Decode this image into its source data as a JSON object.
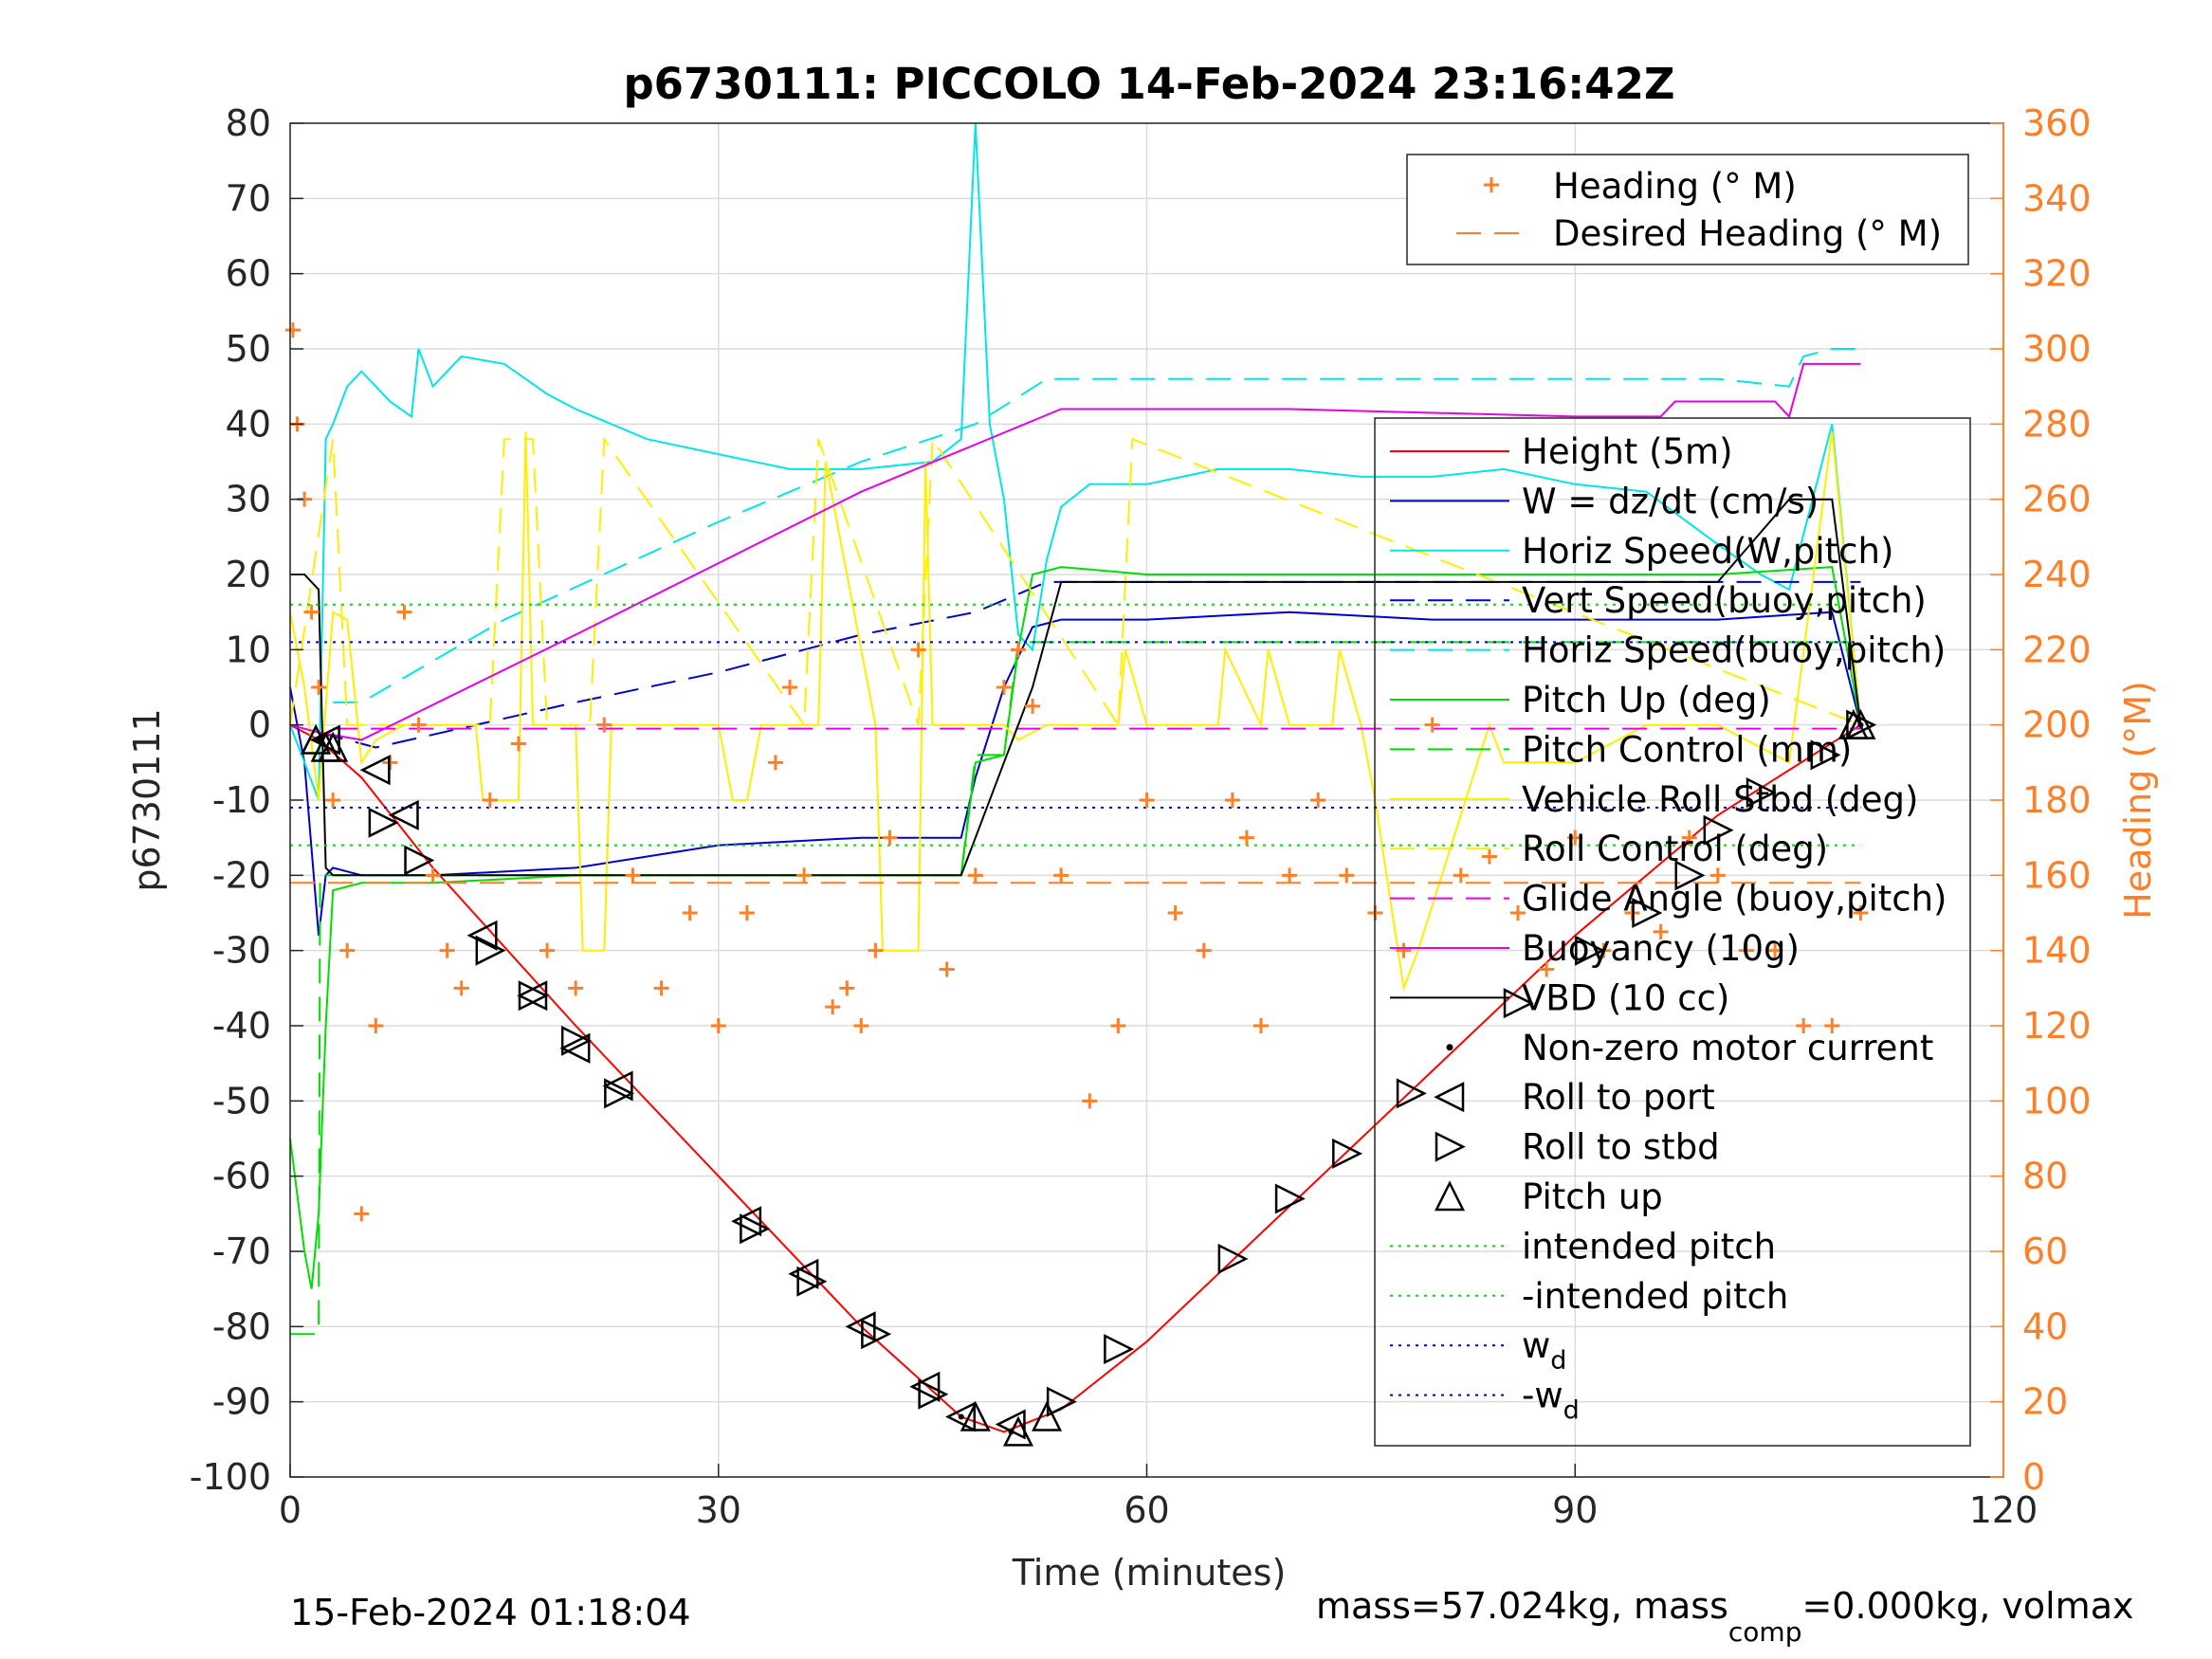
{
  "chart_data": {
    "type": "line",
    "title": "p6730111: PICCOLO 14-Feb-2024 23:16:42Z",
    "xlabel": "Time (minutes)",
    "ylabel": "p6730111",
    "y2label": "Heading (°M)",
    "xlim": [
      0,
      120
    ],
    "ylim": [
      -100,
      80
    ],
    "y2lim": [
      0,
      360
    ],
    "xticks": [
      "0",
      "30",
      "60",
      "90",
      "120"
    ],
    "yticks": [
      "80",
      "70",
      "60",
      "50",
      "40",
      "30",
      "20",
      "10",
      "0",
      "-10",
      "-20",
      "-30",
      "-40",
      "-50",
      "-60",
      "-70",
      "-80",
      "-90",
      "-100"
    ],
    "y2ticks": [
      "360",
      "340",
      "320",
      "300",
      "280",
      "260",
      "240",
      "220",
      "200",
      "180",
      "160",
      "140",
      "120",
      "100",
      "80",
      "60",
      "40",
      "20",
      "0"
    ],
    "grid": true,
    "footer_left": "15-Feb-2024 01:18:04",
    "footer_right": {
      "a": "mass=57.024kg, mass",
      "sub": "comp",
      "b": "=0.000kg, volmax"
    },
    "legend_top": {
      "placement": "top-right",
      "entries": [
        "Heading (° M)",
        "Desired Heading (° M)"
      ]
    },
    "legend_main": {
      "placement": "right",
      "entries": [
        {
          "label": "Height (5m)",
          "color": "#ff0000",
          "style": "solid"
        },
        {
          "label": "W = dz/dt (cm/s)",
          "color": "#0000cc",
          "style": "solid"
        },
        {
          "label": "Horiz Speed(W,pitch)",
          "color": "#00e5e5",
          "style": "solid"
        },
        {
          "label": "Vert Speed(buoy,pitch)",
          "color": "#0000cc",
          "style": "dashed"
        },
        {
          "label": "Horiz Speed(buoy,pitch)",
          "color": "#00e5e5",
          "style": "dashed"
        },
        {
          "label": "Pitch Up (deg)",
          "color": "#00dd00",
          "style": "solid"
        },
        {
          "label": "Pitch Control (mm)",
          "color": "#00dd00",
          "style": "dashed"
        },
        {
          "label": "Vehicle Roll Stbd (deg)",
          "color": "#ffee00",
          "style": "solid"
        },
        {
          "label": "Roll Control (deg)",
          "color": "#ffee00",
          "style": "dashed"
        },
        {
          "label": "Glide Angle (buoy,pitch)",
          "color": "#e600e6",
          "style": "dashed"
        },
        {
          "label": "Buoyancy (10g)",
          "color": "#e600e6",
          "style": "solid"
        },
        {
          "label": "VBD (10 cc)",
          "color": "#000000",
          "style": "solid"
        },
        {
          "label": "Non-zero motor current",
          "color": "#000000",
          "style": "dot"
        },
        {
          "label": "Roll to port",
          "color": "#000000",
          "style": "tri-left"
        },
        {
          "label": "Roll to stbd",
          "color": "#000000",
          "style": "tri-right"
        },
        {
          "label": "Pitch up",
          "color": "#000000",
          "style": "tri-up"
        },
        {
          "label": "intended pitch",
          "color": "#00dd00",
          "style": "dotted"
        },
        {
          "label": "-intended pitch",
          "color": "#00dd00",
          "style": "dotted"
        },
        {
          "label": "w",
          "sub": "d",
          "color": "#0000cc",
          "style": "dotted"
        },
        {
          "label": "-w",
          "sub": "d",
          "color": "#0000cc",
          "style": "dotted"
        }
      ]
    },
    "colors": {
      "heading": "#ff7f27",
      "axis_right": "#ff7f27"
    },
    "series": [
      {
        "name": "Height (5m)",
        "color": "#ff0000",
        "x": [
          0,
          2,
          5,
          10,
          20,
          30,
          40,
          47,
          50,
          54,
          60,
          70,
          80,
          90,
          100,
          110
        ],
        "y": [
          0,
          -2,
          -7,
          -19,
          -40,
          -60,
          -80,
          -92,
          -94,
          -91,
          -82,
          -64,
          -46,
          -28,
          -12,
          0
        ]
      },
      {
        "name": "W = dz/dt (cm/s)",
        "color": "#0000cc",
        "x": [
          0,
          1,
          2,
          2.5,
          3,
          5,
          10,
          20,
          30,
          40,
          47,
          48,
          50,
          52,
          54,
          60,
          70,
          80,
          90,
          100,
          108,
          110
        ],
        "y": [
          5,
          -5,
          -28,
          -20,
          -19,
          -20,
          -20,
          -19,
          -16,
          -15,
          -15,
          -7,
          5,
          13,
          14,
          14,
          15,
          14,
          14,
          14,
          15,
          0
        ]
      },
      {
        "name": "Horiz Speed(W,pitch)",
        "color": "#00e5e5",
        "x": [
          0,
          1,
          2,
          2.5,
          3,
          4,
          5,
          7,
          8.5,
          9,
          10,
          12,
          15,
          18,
          20,
          25,
          30,
          35,
          40,
          45,
          47,
          48,
          49,
          50,
          51,
          52,
          53,
          54,
          56,
          60,
          65,
          70,
          75,
          80,
          85,
          90,
          95,
          100,
          103,
          105,
          108,
          110
        ],
        "y": [
          0,
          -5,
          -10,
          38,
          40,
          45,
          47,
          43,
          41,
          50,
          45,
          49,
          48,
          44,
          42,
          38,
          36,
          34,
          34,
          35,
          38,
          80,
          40,
          30,
          12,
          10,
          22,
          29,
          32,
          32,
          34,
          34,
          33,
          33,
          34,
          32,
          31,
          24,
          20,
          18,
          40,
          0
        ]
      },
      {
        "name": "Vert Speed(buoy,pitch)",
        "color": "#0000cc",
        "dash": true,
        "x": [
          2,
          6,
          20,
          30,
          40,
          48,
          53,
          60,
          90,
          100,
          108,
          110
        ],
        "y": [
          -1,
          -3,
          3,
          7,
          12,
          15,
          19,
          19,
          19,
          19,
          19,
          19
        ]
      },
      {
        "name": "Horiz Speed(buoy,pitch)",
        "color": "#00e5e5",
        "dash": true,
        "x": [
          3,
          5,
          15,
          30,
          40,
          48,
          53,
          60,
          90,
          100,
          105,
          106,
          108,
          110
        ],
        "y": [
          3,
          3,
          14,
          27,
          35,
          40,
          46,
          46,
          46,
          46,
          45,
          49,
          50,
          50
        ]
      },
      {
        "name": "Pitch Up (deg)",
        "color": "#00dd00",
        "x": [
          0,
          1,
          1.5,
          2,
          2.5,
          3,
          5,
          10,
          20,
          30,
          40,
          47,
          48,
          50,
          51,
          52,
          54,
          60,
          70,
          80,
          90,
          100,
          108,
          110
        ],
        "y": [
          -55,
          -70,
          -75,
          -65,
          -40,
          -22,
          -21,
          -21,
          -20,
          -20,
          -20,
          -20,
          -5,
          -4,
          10,
          20,
          21,
          20,
          20,
          20,
          20,
          20,
          21,
          0
        ]
      },
      {
        "name": "Pitch Control (mm)",
        "color": "#00dd00",
        "dash": true,
        "x": [
          0,
          2,
          2.1,
          47,
          48,
          50,
          51,
          110
        ],
        "y": [
          -81,
          -81,
          -20,
          -20,
          -4,
          -4,
          11,
          11
        ]
      },
      {
        "name": "Vehicle Roll Stbd (deg)",
        "color": "#ffee00",
        "x": [
          0,
          1,
          2,
          3,
          4,
          5,
          6,
          8,
          10,
          13,
          13.5,
          16,
          16.5,
          17,
          20,
          20.5,
          22,
          22.5,
          30,
          31,
          32,
          33,
          37,
          37.5,
          41,
          41.5,
          44,
          44.5,
          45,
          50,
          51,
          53,
          58,
          58.5,
          60,
          65,
          65.5,
          68,
          68.5,
          70,
          73,
          73.5,
          75,
          76,
          78,
          79,
          84,
          85,
          90,
          95,
          100,
          105,
          108,
          110
        ],
        "y": [
          15,
          5,
          -10,
          15,
          14,
          -5,
          -2,
          0,
          0,
          0,
          -10,
          -10,
          39,
          0,
          0,
          -30,
          -30,
          0,
          0,
          -10,
          -10,
          0,
          0,
          35,
          0,
          -30,
          -30,
          35,
          0,
          0,
          -2,
          0,
          0,
          10,
          0,
          0,
          10,
          0,
          10,
          0,
          0,
          10,
          0,
          -10,
          -35,
          -30,
          0,
          -5,
          -5,
          0,
          0,
          -5,
          39,
          0
        ]
      },
      {
        "name": "Roll Control (deg)",
        "color": "#ffee00",
        "dash": true,
        "x": [
          0,
          3,
          4,
          14,
          15,
          17,
          18,
          21,
          22,
          36,
          37,
          44,
          45,
          58,
          59,
          110
        ],
        "y": [
          0,
          38,
          0,
          0,
          38,
          38,
          0,
          0,
          38,
          0,
          38,
          0,
          38,
          0,
          38,
          0
        ]
      },
      {
        "name": "Glide Angle (buoy,pitch)",
        "color": "#e600e6",
        "dash": true,
        "x": [
          3,
          110
        ],
        "y": [
          -0.5,
          -0.5
        ]
      },
      {
        "name": "Buoyancy (10g)",
        "color": "#e600e6",
        "x": [
          0,
          2,
          5,
          20,
          40,
          54,
          70,
          90,
          96,
          97,
          104,
          105,
          106,
          110
        ],
        "y": [
          0,
          -1,
          -2,
          12,
          31,
          42,
          42,
          41,
          41,
          43,
          43,
          41,
          48,
          48
        ]
      },
      {
        "name": "VBD (10 cc)",
        "color": "#000000",
        "x": [
          0,
          1,
          2,
          2.5,
          3,
          5,
          10,
          20,
          30,
          40,
          47,
          48,
          50,
          52,
          54,
          60,
          80,
          90,
          100,
          105,
          108,
          110
        ],
        "y": [
          20,
          20,
          18,
          -19,
          -20,
          -20,
          -20,
          -20,
          -20,
          -20,
          -20,
          -15,
          -5,
          5,
          19,
          19,
          19,
          19,
          19,
          30,
          30,
          0
        ]
      },
      {
        "name": "intended pitch",
        "color": "#00dd00",
        "dot": true,
        "x": [
          0,
          110
        ],
        "y": [
          16,
          16
        ]
      },
      {
        "name": "-intended pitch",
        "color": "#00dd00",
        "dot": true,
        "x": [
          0,
          110
        ],
        "y": [
          -16,
          -16
        ]
      },
      {
        "name": "w",
        "sub": "d",
        "color": "#0000cc",
        "dot": true,
        "x": [
          0,
          110
        ],
        "y": [
          11,
          11
        ]
      },
      {
        "name": "-w",
        "sub": "d",
        "color": "#0000cc",
        "dot": true,
        "x": [
          0,
          110
        ],
        "y": [
          -11,
          -11
        ]
      }
    ],
    "heading": {
      "name": "Heading (° M)",
      "color": "#ff7f27",
      "x": [
        0.2,
        0.5,
        1,
        1.5,
        2,
        3,
        4,
        5,
        6,
        7,
        8,
        9,
        10,
        11,
        12,
        14,
        16,
        18,
        20,
        22,
        24,
        26,
        28,
        30,
        32,
        34,
        35,
        36,
        38,
        39,
        40,
        41,
        42,
        44,
        46,
        48,
        50,
        51,
        52,
        54,
        56,
        58,
        60,
        62,
        64,
        66,
        67,
        68,
        70,
        72,
        74,
        76,
        78,
        80,
        82,
        84,
        86,
        88,
        90,
        92,
        94,
        96,
        98,
        100,
        102,
        104,
        106,
        108,
        110
      ],
      "y": [
        305,
        280,
        260,
        230,
        210,
        180,
        140,
        70,
        120,
        190,
        230,
        200,
        160,
        140,
        130,
        180,
        195,
        140,
        130,
        200,
        160,
        130,
        150,
        120,
        150,
        190,
        210,
        160,
        125,
        130,
        120,
        140,
        170,
        220,
        135,
        160,
        210,
        220,
        205,
        160,
        100,
        120,
        180,
        150,
        140,
        180,
        170,
        120,
        160,
        180,
        160,
        150,
        140,
        200,
        160,
        165,
        150,
        135,
        170,
        140,
        150,
        145,
        170,
        160,
        140,
        140,
        120,
        120,
        150
      ]
    },
    "desired_heading": {
      "name": "Desired Heading (° M)",
      "color": "#ff7f27",
      "x": [
        0,
        110
      ],
      "y": [
        158,
        158
      ]
    },
    "markers": {
      "roll_port": {
        "x": [
          2.5,
          6,
          8,
          13.5,
          17,
          20,
          23,
          32,
          36,
          40,
          44.5,
          47,
          50.5
        ],
        "y": [
          -2,
          -6,
          -12,
          -28,
          -36,
          -43,
          -48,
          -66,
          -73,
          -80,
          -88,
          -92,
          -93
        ]
      },
      "roll_stbd": {
        "x": [
          6.5,
          9,
          14,
          17,
          20,
          23,
          32.5,
          36.5,
          41,
          45,
          54,
          58,
          66,
          70,
          74,
          78.5,
          86,
          91,
          95,
          98,
          100,
          103,
          107.5,
          110
        ],
        "y": [
          -13,
          -18,
          -30,
          -36,
          -42,
          -49,
          -67,
          -74,
          -81,
          -89,
          -90,
          -83,
          -71,
          -63,
          -57,
          -49,
          -37,
          -30,
          -25,
          -20,
          -14,
          -9,
          -4,
          0
        ]
      },
      "pitch_up": {
        "x": [
          1.8,
          2.5,
          3,
          48,
          51,
          53,
          109.5,
          110
        ],
        "y": [
          -2,
          -3,
          -3,
          -92,
          -94,
          -92,
          0,
          0
        ]
      },
      "motor": {
        "x": [
          2,
          47,
          50.5,
          110
        ],
        "y": [
          -2,
          -92,
          -94,
          0
        ]
      }
    }
  }
}
